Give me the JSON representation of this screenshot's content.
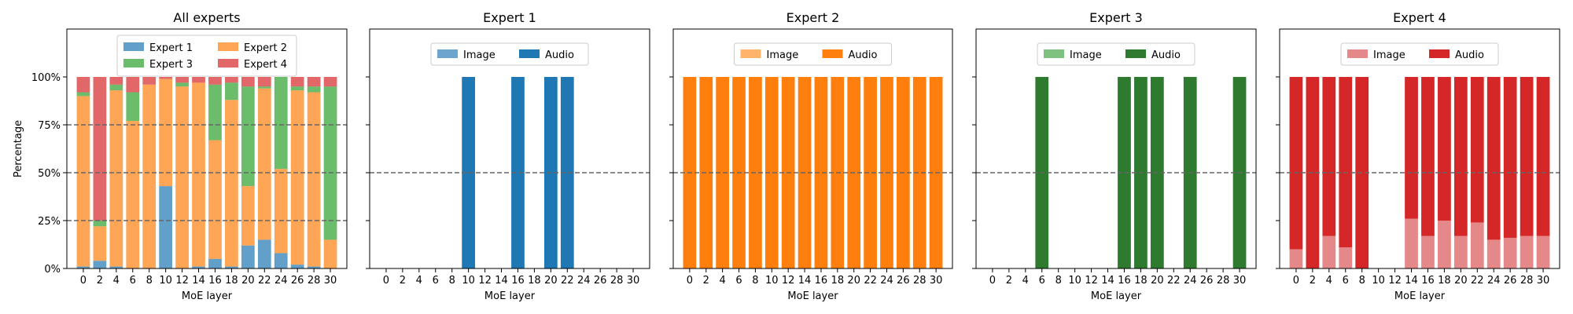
{
  "chart_data": [
    {
      "type": "bar",
      "stacked": true,
      "title": "All experts",
      "xlabel": "MoE layer",
      "ylabel": "Percentage",
      "x": [
        0,
        2,
        4,
        6,
        8,
        10,
        12,
        14,
        16,
        18,
        20,
        22,
        24,
        26,
        28,
        30
      ],
      "ylim": [
        0,
        125
      ],
      "yticks": [
        "0%",
        "25%",
        "50%",
        "75%",
        "100%"
      ],
      "grid": "dashed lines at 25%, 50%, 75%",
      "legend": {
        "position": "top-center",
        "columns": 2
      },
      "series": [
        {
          "name": "Expert 1",
          "color": "#1f77b4",
          "values": [
            1,
            4,
            1,
            0,
            0,
            43,
            0,
            1,
            5,
            1,
            12,
            15,
            8,
            2,
            1,
            0
          ]
        },
        {
          "name": "Expert 2",
          "color": "#ff7f0e",
          "values": [
            89,
            18,
            92,
            77,
            96,
            56,
            95,
            96,
            62,
            87,
            31,
            79,
            44,
            91,
            91,
            15
          ]
        },
        {
          "name": "Expert 3",
          "color": "#2ca02c",
          "values": [
            2,
            3,
            3,
            15,
            0,
            0,
            2,
            0,
            29,
            9,
            52,
            1,
            48,
            2,
            3,
            80
          ]
        },
        {
          "name": "Expert 4",
          "color": "#d62728",
          "values": [
            8,
            75,
            4,
            8,
            4,
            1,
            3,
            3,
            4,
            3,
            5,
            5,
            0,
            5,
            5,
            5
          ]
        }
      ]
    },
    {
      "type": "bar",
      "stacked": true,
      "title": "Expert 1",
      "xlabel": "MoE layer",
      "x": [
        0,
        2,
        4,
        6,
        8,
        10,
        12,
        14,
        16,
        18,
        20,
        22,
        24,
        26,
        28,
        30
      ],
      "ylim": [
        0,
        125
      ],
      "grid": "dashed line at 50%",
      "legend": {
        "position": "top-center",
        "columns": 2
      },
      "series": [
        {
          "name": "Image",
          "color": "#6ca6cf",
          "values": [
            0,
            0,
            0,
            0,
            0,
            0,
            0,
            0,
            0,
            0,
            0,
            0,
            0,
            0,
            0,
            0
          ]
        },
        {
          "name": "Audio",
          "color": "#1f77b4",
          "values": [
            0,
            0,
            0,
            0,
            0,
            100,
            0,
            0,
            100,
            0,
            100,
            100,
            0,
            0,
            0,
            0
          ]
        }
      ]
    },
    {
      "type": "bar",
      "stacked": true,
      "title": "Expert 2",
      "xlabel": "MoE layer",
      "x": [
        0,
        2,
        4,
        6,
        8,
        10,
        12,
        14,
        16,
        18,
        20,
        22,
        24,
        26,
        28,
        30
      ],
      "ylim": [
        0,
        125
      ],
      "grid": "dashed line at 50%",
      "legend": {
        "position": "top-center",
        "columns": 2
      },
      "series": [
        {
          "name": "Image",
          "color": "#ffb46a",
          "values": [
            0,
            0,
            0,
            0,
            0,
            0,
            0,
            0,
            0,
            0,
            0,
            0,
            0,
            0,
            0,
            0
          ]
        },
        {
          "name": "Audio",
          "color": "#ff7f0e",
          "values": [
            100,
            100,
            100,
            100,
            100,
            100,
            100,
            100,
            100,
            100,
            100,
            100,
            100,
            100,
            100,
            100
          ]
        }
      ]
    },
    {
      "type": "bar",
      "stacked": true,
      "title": "Expert 3",
      "xlabel": "MoE layer",
      "x": [
        0,
        2,
        4,
        6,
        8,
        10,
        12,
        14,
        16,
        18,
        20,
        22,
        24,
        26,
        28,
        30
      ],
      "ylim": [
        0,
        125
      ],
      "grid": "dashed line at 50%",
      "legend": {
        "position": "top-center",
        "columns": 2
      },
      "series": [
        {
          "name": "Image",
          "color": "#7fc17f",
          "values": [
            0,
            0,
            0,
            0,
            0,
            0,
            0,
            0,
            0,
            0,
            0,
            0,
            0,
            0,
            0,
            0
          ]
        },
        {
          "name": "Audio",
          "color": "#2e7a2e",
          "values": [
            0,
            0,
            0,
            100,
            0,
            0,
            0,
            0,
            100,
            100,
            100,
            0,
            100,
            0,
            0,
            100
          ]
        }
      ]
    },
    {
      "type": "bar",
      "stacked": true,
      "title": "Expert 4",
      "xlabel": "MoE layer",
      "x": [
        0,
        2,
        4,
        6,
        8,
        10,
        12,
        14,
        16,
        18,
        20,
        22,
        24,
        26,
        28,
        30
      ],
      "ylim": [
        0,
        125
      ],
      "grid": "dashed line at 50%",
      "legend": {
        "position": "top-center",
        "columns": 2
      },
      "series": [
        {
          "name": "Image",
          "color": "#e58889",
          "values": [
            10,
            0,
            17,
            11,
            0,
            0,
            0,
            26,
            17,
            25,
            17,
            24,
            15,
            16,
            17,
            17
          ]
        },
        {
          "name": "Audio",
          "color": "#d62728",
          "values": [
            90,
            100,
            83,
            89,
            100,
            0,
            0,
            74,
            83,
            75,
            83,
            76,
            85,
            84,
            83,
            83
          ]
        }
      ]
    }
  ]
}
